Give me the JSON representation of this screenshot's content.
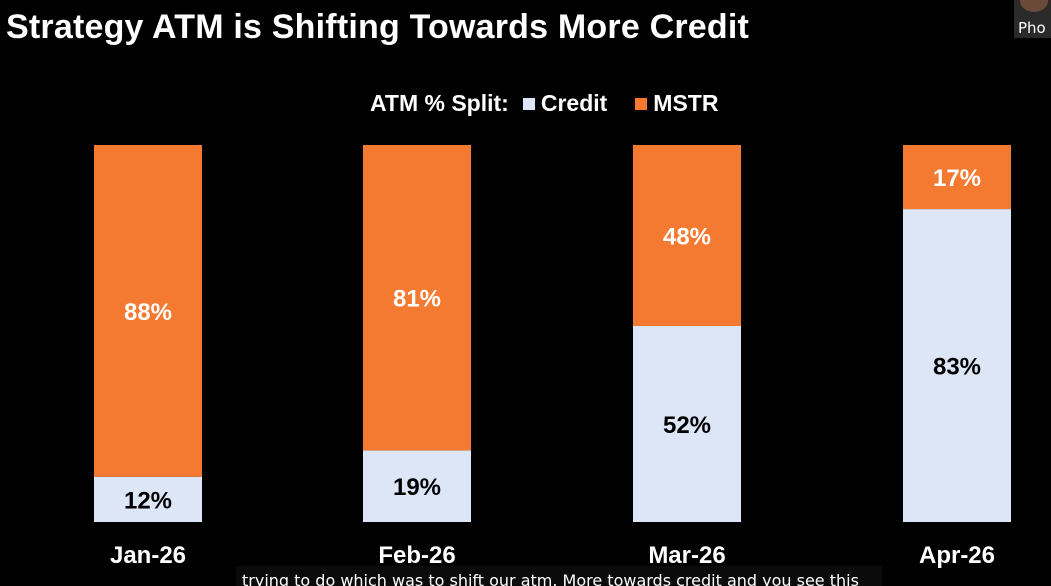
{
  "chart_data": {
    "type": "bar",
    "stacked": true,
    "title": "Strategy ATM is Shifting Towards More Credit",
    "legend_title": "ATM % Split:",
    "legend_placement": "top-center",
    "categories": [
      "Jan-26",
      "Feb-26",
      "Mar-26",
      "Apr-26"
    ],
    "series": [
      {
        "name": "Credit",
        "color": "#dce6f7",
        "values": [
          12,
          19,
          52,
          83
        ],
        "labels": [
          "12%",
          "19%",
          "52%",
          "83%"
        ]
      },
      {
        "name": "MSTR",
        "color": "#f47a32",
        "values": [
          88,
          81,
          48,
          17
        ],
        "labels": [
          "88%",
          "81%",
          "48%",
          "17%"
        ]
      }
    ],
    "ylim": [
      0,
      100
    ],
    "grid": false
  },
  "webcam": {
    "label": "Pho"
  },
  "caption": "trying to do which was to shift our atm. More towards credit and you see this"
}
